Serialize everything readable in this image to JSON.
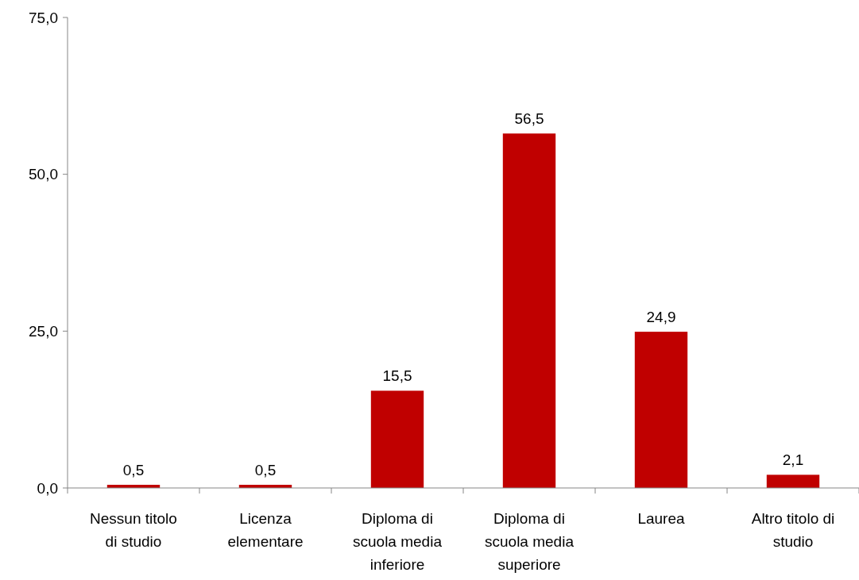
{
  "chart_data": {
    "type": "bar",
    "categories": [
      "Nessun titolo di studio",
      "Licenza elementare",
      "Diploma di scuola media inferiore",
      "Diploma di scuola media superiore",
      "Laurea",
      "Altro titolo di studio"
    ],
    "values": [
      0.5,
      0.5,
      15.5,
      56.5,
      24.9,
      2.1
    ],
    "value_labels": [
      "0,5",
      "0,5",
      "15,5",
      "56,5",
      "24,9",
      "2,1"
    ],
    "color": "#c00000",
    "ylim": [
      0,
      75
    ],
    "yticks": [
      {
        "value": 0,
        "label": "0,0"
      },
      {
        "value": 25,
        "label": "25,0"
      },
      {
        "value": 50,
        "label": "50,0"
      },
      {
        "value": 75,
        "label": "75,0"
      }
    ],
    "grid": false
  }
}
